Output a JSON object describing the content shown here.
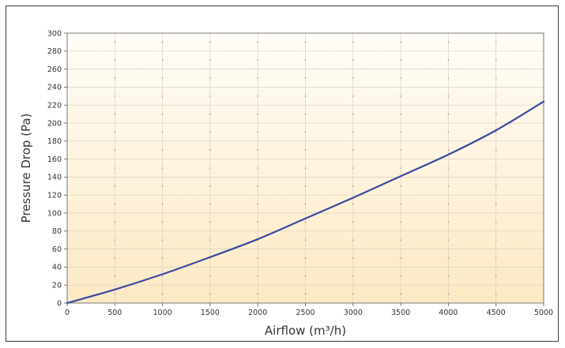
{
  "chart_data": {
    "type": "line",
    "title": "",
    "xlabel": "Airflow (m³/h)",
    "ylabel": "Pressure Drop (Pa)",
    "xlim": [
      0,
      5000
    ],
    "ylim": [
      0,
      300
    ],
    "x_ticks": [
      "0",
      "500",
      "1000",
      "1500",
      "2000",
      "2500",
      "3000",
      "3500",
      "4000",
      "4500",
      "5000"
    ],
    "y_ticks": [
      "0",
      "20",
      "40",
      "60",
      "80",
      "100",
      "120",
      "140",
      "160",
      "180",
      "200",
      "220",
      "240",
      "260",
      "280",
      "300"
    ],
    "grid": true,
    "legend": "none",
    "series": [
      {
        "color": "#3a4aa0",
        "x": [
          0,
          500,
          1000,
          1500,
          2000,
          2500,
          3000,
          3500,
          4000,
          4500,
          5000
        ],
        "y": [
          0,
          15,
          32,
          51,
          71,
          94,
          117,
          141,
          165,
          192,
          224
        ]
      }
    ],
    "background_gradient": [
      "#fffdf8",
      "#fce9c4"
    ]
  }
}
